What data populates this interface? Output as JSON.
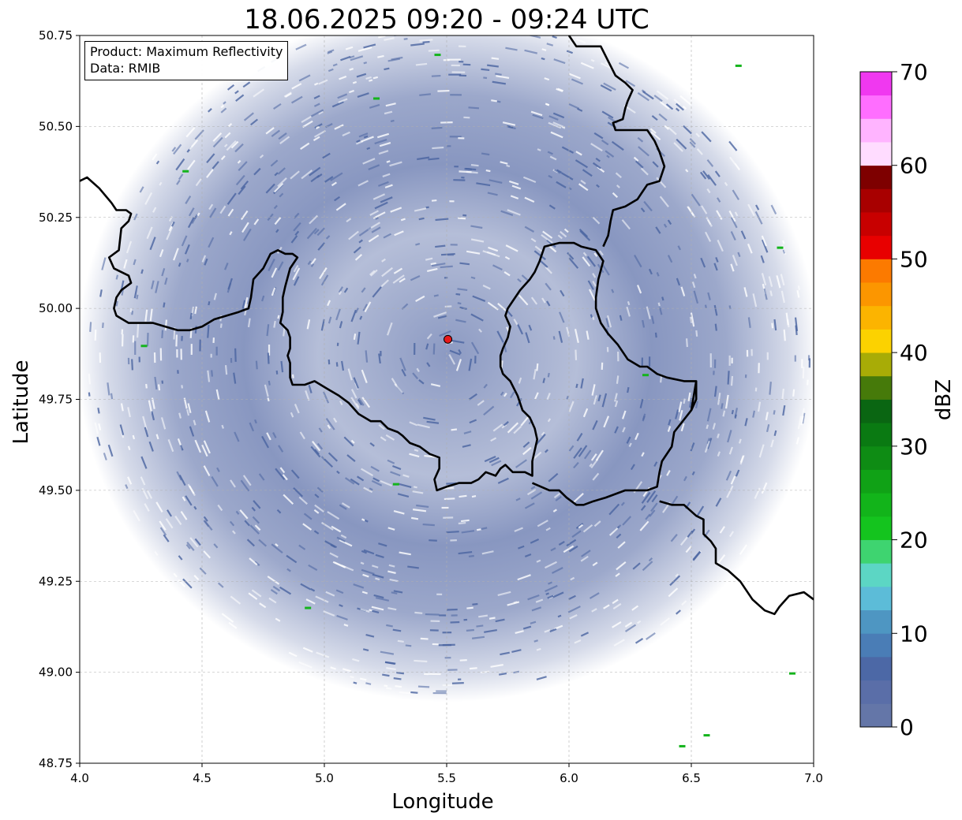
{
  "title": "18.06.2025 09:20 - 09:24 UTC",
  "info_box": {
    "product": "Product: Maximum Reflectivity",
    "data": "Data: RMIB"
  },
  "chart_data": {
    "type": "heatmap",
    "title": "18.06.2025 09:20 - 09:24 UTC",
    "xlabel": "Longitude",
    "ylabel": "Latitude",
    "xlim": [
      4.0,
      7.0
    ],
    "ylim": [
      48.75,
      50.75
    ],
    "x_ticks": [
      "4.0",
      "4.5",
      "5.0",
      "5.5",
      "6.0",
      "6.5",
      "7.0"
    ],
    "y_ticks": [
      "48.75",
      "49.00",
      "49.25",
      "49.50",
      "49.75",
      "50.00",
      "50.25",
      "50.50",
      "50.75"
    ],
    "grid": true,
    "radar_site": {
      "lon": 5.505,
      "lat": 49.915,
      "color": "#e8191a"
    },
    "colorbar": {
      "label": "dBZ",
      "range": [
        0,
        70
      ],
      "ticks": [
        "0",
        "10",
        "20",
        "30",
        "40",
        "50",
        "60",
        "70"
      ],
      "colors": [
        "#6476a8",
        "#5a6ea8",
        "#4c68a6",
        "#4a7db6",
        "#4e96c2",
        "#5cbcd8",
        "#5cd6c4",
        "#3ed470",
        "#14c41e",
        "#12b41a",
        "#10a216",
        "#0e8c14",
        "#0a7a12",
        "#0a6612",
        "#467a0a",
        "#a8ac06",
        "#fcd200",
        "#fcb400",
        "#fc9600",
        "#fc7a00",
        "#e80000",
        "#c80000",
        "#a80000",
        "#7e0000",
        "#ffdcff",
        "#ffb4ff",
        "#ff6eff",
        "#f038f0"
      ]
    },
    "borders": [
      {
        "name": "belgium-france-west",
        "points": [
          [
            4.0,
            50.35
          ],
          [
            4.03,
            50.36
          ],
          [
            4.08,
            50.33
          ],
          [
            4.13,
            50.29
          ],
          [
            4.15,
            50.27
          ],
          [
            4.19,
            50.27
          ],
          [
            4.21,
            50.26
          ],
          [
            4.2,
            50.24
          ],
          [
            4.17,
            50.22
          ],
          [
            4.16,
            50.16
          ],
          [
            4.12,
            50.14
          ],
          [
            4.14,
            50.11
          ],
          [
            4.2,
            50.09
          ],
          [
            4.21,
            50.07
          ],
          [
            4.17,
            50.05
          ],
          [
            4.15,
            50.03
          ],
          [
            4.14,
            50.0
          ],
          [
            4.15,
            49.98
          ],
          [
            4.2,
            49.96
          ],
          [
            4.25,
            49.96
          ],
          [
            4.3,
            49.96
          ],
          [
            4.35,
            49.95
          ],
          [
            4.4,
            49.94
          ],
          [
            4.45,
            49.94
          ],
          [
            4.5,
            49.95
          ],
          [
            4.55,
            49.97
          ],
          [
            4.6,
            49.98
          ],
          [
            4.65,
            49.99
          ],
          [
            4.69,
            50.0
          ],
          [
            4.7,
            50.03
          ],
          [
            4.71,
            50.08
          ],
          [
            4.75,
            50.11
          ],
          [
            4.78,
            50.15
          ],
          [
            4.81,
            50.16
          ],
          [
            4.84,
            50.15
          ],
          [
            4.87,
            50.15
          ],
          [
            4.89,
            50.14
          ],
          [
            4.86,
            50.11
          ],
          [
            4.84,
            50.06
          ],
          [
            4.83,
            50.03
          ],
          [
            4.83,
            49.99
          ],
          [
            4.82,
            49.96
          ],
          [
            4.85,
            49.94
          ],
          [
            4.86,
            49.92
          ],
          [
            4.86,
            49.89
          ],
          [
            4.85,
            49.87
          ],
          [
            4.86,
            49.85
          ],
          [
            4.86,
            49.81
          ],
          [
            4.87,
            49.79
          ],
          [
            4.92,
            49.79
          ],
          [
            4.96,
            49.8
          ],
          [
            5.01,
            49.78
          ],
          [
            5.06,
            49.76
          ],
          [
            5.1,
            49.74
          ],
          [
            5.14,
            49.71
          ],
          [
            5.19,
            49.69
          ],
          [
            5.23,
            49.69
          ],
          [
            5.26,
            49.67
          ],
          [
            5.3,
            49.66
          ],
          [
            5.32,
            49.65
          ],
          [
            5.35,
            49.63
          ],
          [
            5.39,
            49.62
          ],
          [
            5.43,
            49.6
          ],
          [
            5.47,
            49.59
          ],
          [
            5.47,
            49.56
          ],
          [
            5.45,
            49.53
          ],
          [
            5.46,
            49.5
          ],
          [
            5.5,
            49.51
          ],
          [
            5.55,
            49.52
          ],
          [
            5.6,
            49.52
          ],
          [
            5.63,
            49.53
          ],
          [
            5.66,
            49.55
          ],
          [
            5.7,
            49.54
          ],
          [
            5.72,
            49.56
          ],
          [
            5.74,
            49.57
          ],
          [
            5.77,
            49.55
          ],
          [
            5.82,
            49.55
          ],
          [
            5.85,
            49.54
          ],
          [
            5.85,
            49.58
          ],
          [
            5.86,
            49.61
          ],
          [
            5.87,
            49.64
          ],
          [
            5.86,
            49.67
          ],
          [
            5.84,
            49.7
          ],
          [
            5.81,
            49.72
          ],
          [
            5.79,
            49.76
          ],
          [
            5.76,
            49.8
          ],
          [
            5.73,
            49.82
          ],
          [
            5.72,
            49.84
          ],
          [
            5.72,
            49.87
          ],
          [
            5.73,
            49.89
          ],
          [
            5.75,
            49.92
          ],
          [
            5.76,
            49.95
          ],
          [
            5.74,
            49.98
          ],
          [
            5.75,
            50.0
          ],
          [
            5.77,
            50.02
          ],
          [
            5.8,
            50.05
          ],
          [
            5.84,
            50.08
          ],
          [
            5.86,
            50.1
          ],
          [
            5.88,
            50.13
          ],
          [
            5.9,
            50.17
          ],
          [
            5.96,
            50.18
          ],
          [
            6.02,
            50.18
          ],
          [
            6.05,
            50.17
          ],
          [
            6.11,
            50.16
          ],
          [
            6.14,
            50.13
          ],
          [
            6.12,
            50.08
          ],
          [
            6.11,
            50.03
          ],
          [
            6.11,
            50.0
          ],
          [
            6.13,
            49.96
          ],
          [
            6.16,
            49.93
          ],
          [
            6.2,
            49.9
          ],
          [
            6.24,
            49.86
          ],
          [
            6.29,
            49.84
          ],
          [
            6.32,
            49.84
          ],
          [
            6.36,
            49.82
          ],
          [
            6.4,
            49.81
          ],
          [
            6.47,
            49.8
          ],
          [
            6.52,
            49.8
          ],
          [
            6.51,
            49.76
          ],
          [
            6.5,
            49.72
          ],
          [
            6.43,
            49.66
          ],
          [
            6.42,
            49.62
          ],
          [
            6.38,
            49.58
          ],
          [
            6.37,
            49.55
          ],
          [
            6.36,
            49.51
          ],
          [
            6.32,
            49.5
          ],
          [
            6.28,
            49.5
          ],
          [
            6.23,
            49.5
          ],
          [
            6.19,
            49.49
          ],
          [
            6.15,
            49.48
          ],
          [
            6.1,
            49.47
          ],
          [
            6.06,
            49.46
          ],
          [
            6.03,
            49.46
          ],
          [
            5.99,
            49.48
          ],
          [
            5.96,
            49.5
          ],
          [
            5.92,
            49.5
          ],
          [
            5.85,
            49.52
          ]
        ]
      },
      {
        "name": "belgium-germany-east",
        "points": [
          [
            6.0,
            50.75
          ],
          [
            6.03,
            50.72
          ],
          [
            6.08,
            50.72
          ],
          [
            6.13,
            50.72
          ],
          [
            6.19,
            50.64
          ],
          [
            6.23,
            50.62
          ],
          [
            6.26,
            50.6
          ],
          [
            6.24,
            50.57
          ],
          [
            6.23,
            50.55
          ],
          [
            6.22,
            50.52
          ],
          [
            6.18,
            50.51
          ],
          [
            6.19,
            50.49
          ],
          [
            6.25,
            50.49
          ],
          [
            6.32,
            50.49
          ],
          [
            6.35,
            50.46
          ],
          [
            6.37,
            50.43
          ],
          [
            6.39,
            50.39
          ],
          [
            6.37,
            50.35
          ],
          [
            6.32,
            50.34
          ],
          [
            6.3,
            50.32
          ],
          [
            6.28,
            50.3
          ],
          [
            6.23,
            50.28
          ],
          [
            6.18,
            50.27
          ],
          [
            6.17,
            50.24
          ],
          [
            6.16,
            50.2
          ],
          [
            6.14,
            50.17
          ]
        ]
      },
      {
        "name": "luxembourg-germany",
        "points": [
          [
            6.52,
            49.8
          ],
          [
            6.52,
            49.75
          ],
          [
            6.5,
            49.72
          ]
        ]
      },
      {
        "name": "france-germany-south",
        "points": [
          [
            6.37,
            49.47
          ],
          [
            6.42,
            49.46
          ],
          [
            6.47,
            49.46
          ],
          [
            6.52,
            49.43
          ],
          [
            6.55,
            49.42
          ],
          [
            6.55,
            49.38
          ],
          [
            6.58,
            49.36
          ],
          [
            6.6,
            49.34
          ],
          [
            6.6,
            49.3
          ],
          [
            6.65,
            49.28
          ],
          [
            6.7,
            49.25
          ],
          [
            6.75,
            49.2
          ],
          [
            6.8,
            49.17
          ],
          [
            6.84,
            49.16
          ],
          [
            6.86,
            49.18
          ],
          [
            6.9,
            49.21
          ],
          [
            6.96,
            49.22
          ],
          [
            7.0,
            49.2
          ]
        ]
      }
    ]
  }
}
